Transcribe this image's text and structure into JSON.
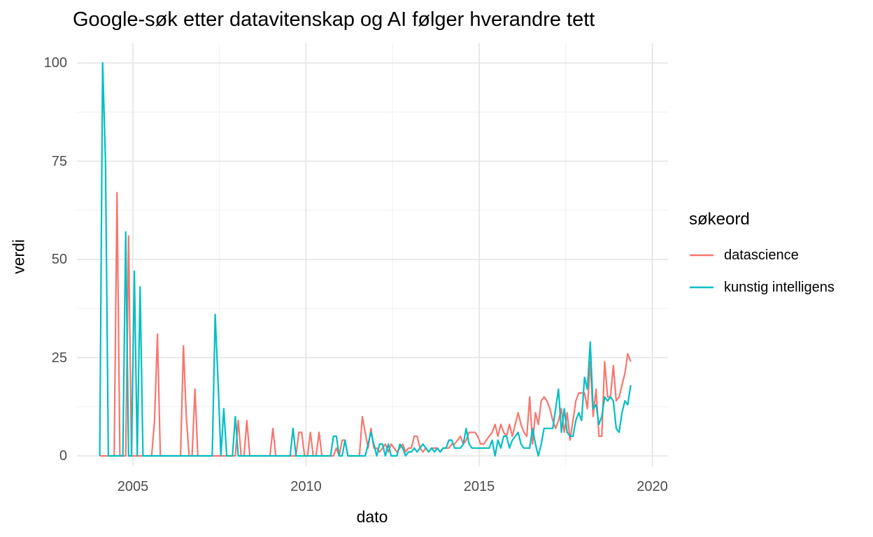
{
  "title": "Google-søk etter datavitenskap og AI følger hverandre tett",
  "chart_data": {
    "type": "line",
    "xlabel": "dato",
    "ylabel": "verdi",
    "legend_title": "søkeord",
    "legend_position": "right",
    "grid": "major+minor",
    "ylim": [
      0,
      100
    ],
    "y_tick_values": [
      0,
      25,
      50,
      75,
      100
    ],
    "y_tick_labels": [
      "0",
      "25",
      "50",
      "75",
      "100"
    ],
    "x_tick_years": [
      2005,
      2010,
      2015,
      2020
    ],
    "x_tick_labels": [
      "2005",
      "2010",
      "2015",
      "2020"
    ],
    "x_minor_years": [
      2007.5,
      2012.5,
      2017.5
    ],
    "y_minor_values": [
      12.5,
      37.5,
      62.5,
      87.5
    ],
    "x_start_month": "2004-01",
    "x_end_month": "2019-05",
    "x_unit": "month",
    "series": [
      {
        "name": "datascience",
        "color": "#F8766D",
        "values": [
          0,
          0,
          0,
          0,
          0,
          0,
          67,
          0,
          0,
          0,
          56,
          0,
          0,
          0,
          0,
          0,
          0,
          0,
          0,
          9,
          31,
          0,
          0,
          0,
          0,
          0,
          0,
          0,
          0,
          28,
          10,
          0,
          0,
          17,
          0,
          0,
          0,
          0,
          0,
          0,
          0,
          0,
          0,
          0,
          0,
          0,
          0,
          0,
          9,
          0,
          0,
          9,
          0,
          0,
          0,
          0,
          0,
          0,
          0,
          0,
          7,
          0,
          0,
          0,
          0,
          0,
          0,
          0,
          0,
          6,
          6,
          0,
          0,
          6,
          0,
          0,
          6,
          0,
          0,
          0,
          0,
          0,
          2,
          0,
          4,
          4,
          0,
          0,
          0,
          0,
          0,
          10,
          6,
          2,
          7,
          2,
          2,
          1,
          2,
          3,
          1,
          3,
          2,
          1,
          2,
          3,
          1,
          2,
          2,
          5,
          5,
          2,
          1,
          2,
          1,
          2,
          2,
          2,
          1,
          2,
          2,
          2,
          3,
          3,
          4,
          5,
          3,
          4,
          6,
          6,
          6,
          5,
          3,
          3,
          4,
          5,
          6,
          8,
          5,
          8,
          6,
          5,
          8,
          5,
          8,
          11,
          8,
          6,
          5,
          15,
          3,
          11,
          8,
          14,
          15,
          14,
          12,
          9,
          7,
          9,
          12,
          6,
          11,
          4,
          9,
          14,
          16,
          16,
          16,
          12,
          24,
          10,
          17,
          5,
          5,
          24,
          15,
          15,
          23,
          14,
          15,
          18,
          21,
          26,
          24
        ]
      },
      {
        "name": "kunstig intelligens",
        "color": "#00BFC4",
        "values": [
          0,
          100,
          75,
          0,
          0,
          0,
          0,
          0,
          0,
          57,
          0,
          0,
          47,
          0,
          43,
          0,
          0,
          0,
          0,
          0,
          0,
          0,
          0,
          0,
          0,
          0,
          0,
          0,
          0,
          0,
          0,
          0,
          0,
          0,
          0,
          0,
          0,
          0,
          0,
          0,
          36,
          19,
          0,
          12,
          0,
          0,
          0,
          10,
          0,
          0,
          0,
          0,
          0,
          0,
          0,
          0,
          0,
          0,
          0,
          0,
          0,
          0,
          0,
          0,
          0,
          0,
          0,
          7,
          0,
          0,
          0,
          0,
          0,
          0,
          0,
          0,
          0,
          0,
          0,
          0,
          0,
          5,
          5,
          0,
          0,
          4,
          0,
          0,
          0,
          0,
          0,
          0,
          0,
          3,
          6,
          3,
          0,
          3,
          3,
          0,
          3,
          0,
          0,
          0,
          3,
          2,
          0,
          1,
          1,
          2,
          1,
          2,
          3,
          2,
          1,
          2,
          1,
          2,
          1,
          2,
          2,
          4,
          4,
          2,
          2,
          2,
          3,
          7,
          3,
          2,
          2,
          2,
          2,
          2,
          2,
          2,
          4,
          0,
          4,
          2,
          5,
          5,
          2,
          4,
          5,
          6,
          3,
          2,
          2,
          2,
          7,
          3,
          0,
          3,
          7,
          7,
          7,
          7,
          12,
          17,
          6,
          12,
          6,
          5,
          5,
          9,
          11,
          9,
          20,
          17,
          29,
          12,
          13,
          8,
          10,
          15,
          14,
          15,
          14,
          7,
          6,
          11,
          14,
          13,
          18
        ]
      }
    ]
  },
  "colors": {
    "background": "#FFFFFF",
    "grid_major": "#E3E3E3",
    "grid_minor": "#EFEFEF",
    "tick_text": "#4D4D4D",
    "title_text": "#000000"
  }
}
